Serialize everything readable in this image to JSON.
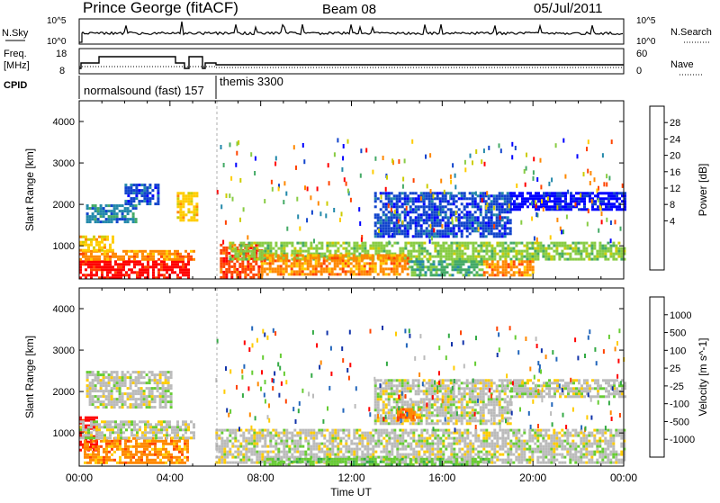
{
  "header": {
    "station": "Prince George (fitACF)",
    "beam": "Beam 08",
    "date": "05/Jul/2011"
  },
  "panels": {
    "nsky_label": "N.Sky",
    "nsearch_label": "N.Search",
    "freq_label_line1": "Freq.",
    "freq_label_line2": "[MHz]",
    "nave_label": "Nave",
    "cpid_label": "CPID",
    "top_left_ticks": [
      "10^5",
      "10^0"
    ],
    "top_right_ticks": [
      "10^5",
      "10^0"
    ],
    "freq_left_ticks": [
      "18",
      "8"
    ],
    "freq_right_ticks": [
      "60",
      "0"
    ]
  },
  "cpid": [
    {
      "label": "normalsound (fast) 157",
      "start_hour": 0
    },
    {
      "label": "themis 3300",
      "start_hour": 6
    }
  ],
  "x_axis": {
    "ticks": [
      "00:00",
      "04:00",
      "08:00",
      "12:00",
      "16:00",
      "20:00",
      "00:00"
    ],
    "label": "Time UT"
  },
  "colorbars": {
    "power": {
      "label": "Power [dB]",
      "ticks": [
        "28",
        "24",
        "20",
        "16",
        "12",
        "8",
        "4"
      ],
      "colors": [
        "#ff0000",
        "#ff4400",
        "#ff8800",
        "#ffcc00",
        "#cccc00",
        "#88cc44",
        "#44aa66",
        "#2288aa",
        "#1144cc",
        "#0000ff"
      ]
    },
    "velocity": {
      "label": "Velocity [m s^-1]",
      "ticks": [
        "1000",
        "500",
        "100",
        "25",
        "-25",
        "-100",
        "-500",
        "-1000"
      ],
      "colors": [
        "#1133aa",
        "#2266bb",
        "#33aa44",
        "#66cc33",
        "#bbbbbb",
        "#ffcc00",
        "#ff8800",
        "#ff4400",
        "#ff0000"
      ]
    }
  },
  "chart_data": [
    {
      "type": "heatmap",
      "name": "power",
      "xlabel": "",
      "ylabel": "Slant Range [km]",
      "x_unit": "hour UT",
      "xlim": [
        0,
        24
      ],
      "ylim": [
        200,
        4500
      ],
      "yticks": [
        1000,
        2000,
        3000,
        4000
      ],
      "band_color_index_scale": "10 color steps, 0=highest power",
      "bands": [
        {
          "x0": 0.0,
          "x1": 4.8,
          "y0": 250,
          "y1": 650,
          "c": 0
        },
        {
          "x0": 0.0,
          "x1": 5.0,
          "y0": 650,
          "y1": 900,
          "c": 2
        },
        {
          "x0": 0.0,
          "x1": 1.5,
          "y0": 900,
          "y1": 1250,
          "c": 3
        },
        {
          "x0": 0.3,
          "x1": 2.5,
          "y0": 1600,
          "y1": 2000,
          "c": 7
        },
        {
          "x0": 2.0,
          "x1": 3.5,
          "y0": 2000,
          "y1": 2500,
          "c": 8
        },
        {
          "x0": 4.3,
          "x1": 5.2,
          "y0": 1600,
          "y1": 2300,
          "c": 3
        },
        {
          "x0": 6.2,
          "x1": 8.0,
          "y0": 250,
          "y1": 1050,
          "c": 1
        },
        {
          "x0": 6.6,
          "x1": 24.0,
          "y0": 700,
          "y1": 1100,
          "c": 5
        },
        {
          "x0": 8.0,
          "x1": 14.5,
          "y0": 300,
          "y1": 800,
          "c": 2
        },
        {
          "x0": 14.5,
          "x1": 17.8,
          "y0": 300,
          "y1": 650,
          "c": 6
        },
        {
          "x0": 17.8,
          "x1": 20.0,
          "y0": 300,
          "y1": 650,
          "c": 2
        },
        {
          "x0": 13.0,
          "x1": 19.0,
          "y0": 1200,
          "y1": 2300,
          "c": 8
        },
        {
          "x0": 19.0,
          "x1": 24.0,
          "y0": 1900,
          "y1": 2300,
          "c": 9
        }
      ]
    },
    {
      "type": "heatmap",
      "name": "velocity",
      "xlabel": "Time UT",
      "ylabel": "Slant Range [km]",
      "x_unit": "hour UT",
      "xlim": [
        0,
        24
      ],
      "ylim": [
        200,
        4500
      ],
      "yticks": [
        1000,
        2000,
        3000,
        4000
      ],
      "band_color_index_scale": "9 color steps, 0=1000 m/s",
      "bands": [
        {
          "x0": 0.0,
          "x1": 0.8,
          "y0": 600,
          "y1": 1400,
          "c": 8
        },
        {
          "x0": 0.2,
          "x1": 4.8,
          "y0": 250,
          "y1": 900,
          "c": 6
        },
        {
          "x0": 0.0,
          "x1": 5.0,
          "y0": 900,
          "y1": 1300,
          "c": 4
        },
        {
          "x0": 0.3,
          "x1": 4.0,
          "y0": 1600,
          "y1": 2500,
          "c": 4
        },
        {
          "x0": 6.0,
          "x1": 24.0,
          "y0": 300,
          "y1": 1100,
          "c": 4
        },
        {
          "x0": 8.0,
          "x1": 18.0,
          "y0": 250,
          "y1": 400,
          "c": 3
        },
        {
          "x0": 13.0,
          "x1": 19.0,
          "y0": 1200,
          "y1": 2300,
          "c": 4
        },
        {
          "x0": 14.0,
          "x1": 15.0,
          "y0": 1300,
          "y1": 1600,
          "c": 6
        },
        {
          "x0": 19.0,
          "x1": 24.0,
          "y0": 1900,
          "y1": 2300,
          "c": 4
        }
      ]
    }
  ]
}
